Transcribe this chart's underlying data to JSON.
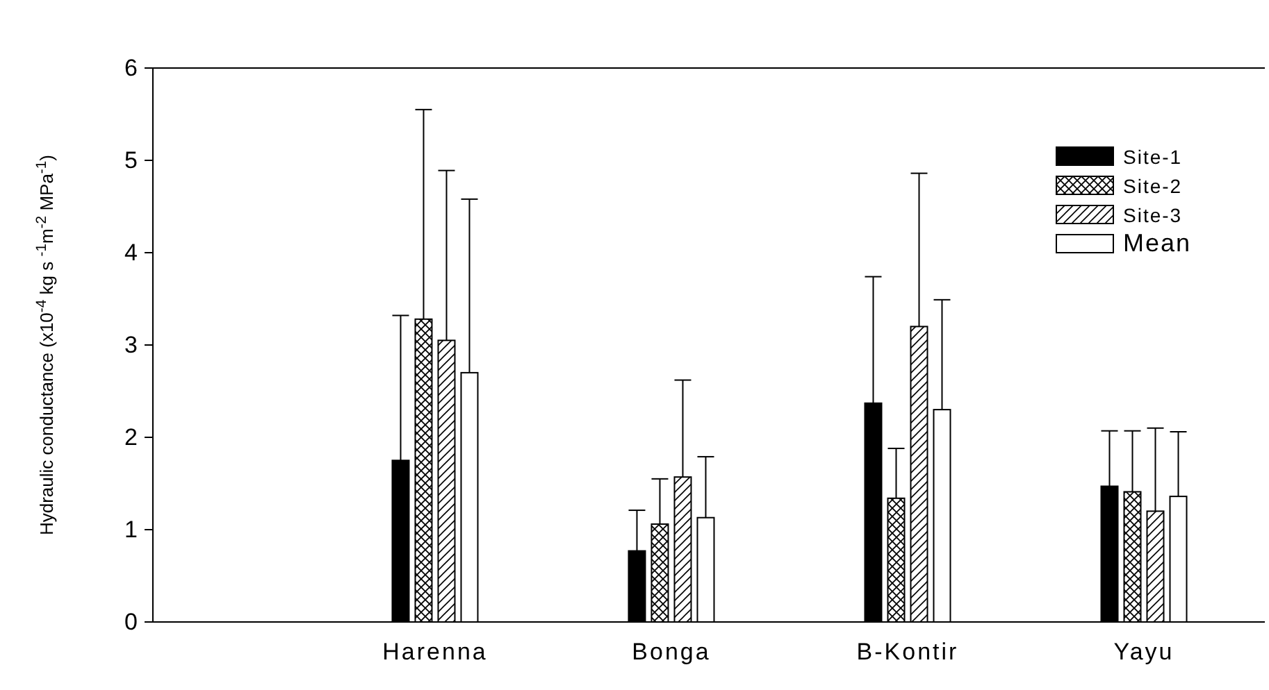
{
  "chart_data": {
    "type": "bar",
    "ylabel": "Hydraulic conductance (x10$^{-4}$ kg s $^{-1}$m$^{-2}$ MPa$^{-1}$)",
    "categories": [
      "Harenna",
      "Bonga",
      "B-Kontir",
      "Yayu"
    ],
    "ylim": [
      0,
      6
    ],
    "yticks": [
      0,
      1,
      2,
      3,
      4,
      5,
      6
    ],
    "legend": "top right",
    "grid": false,
    "series": [
      {
        "name": "Site-1",
        "color": "#000000",
        "values": [
          1.75,
          0.77,
          2.37,
          1.47
        ],
        "errors": [
          [
            1.75,
            3.32
          ],
          [
            0.77,
            1.21
          ],
          [
            2.37,
            3.74
          ],
          [
            1.47,
            2.07
          ]
        ]
      },
      {
        "name": "Site-2",
        "color": "#000000",
        "values": [
          3.28,
          1.06,
          1.34,
          1.41
        ],
        "errors": [
          [
            3.28,
            5.55
          ],
          [
            1.06,
            1.55
          ],
          [
            1.34,
            1.88
          ],
          [
            1.41,
            2.07
          ]
        ]
      },
      {
        "name": "Site-3",
        "color": "#000000",
        "values": [
          3.05,
          1.57,
          3.2,
          1.2
        ],
        "errors": [
          [
            3.05,
            4.89
          ],
          [
            1.57,
            2.62
          ],
          [
            3.2,
            4.86
          ],
          [
            1.2,
            2.1
          ]
        ]
      },
      {
        "name": "Mean",
        "color": "#ffffff",
        "values": [
          2.7,
          1.13,
          2.3,
          1.36
        ],
        "errors": [
          [
            2.7,
            4.58
          ],
          [
            1.13,
            1.79
          ],
          [
            2.3,
            3.49
          ],
          [
            1.36,
            2.06
          ]
        ]
      }
    ]
  }
}
